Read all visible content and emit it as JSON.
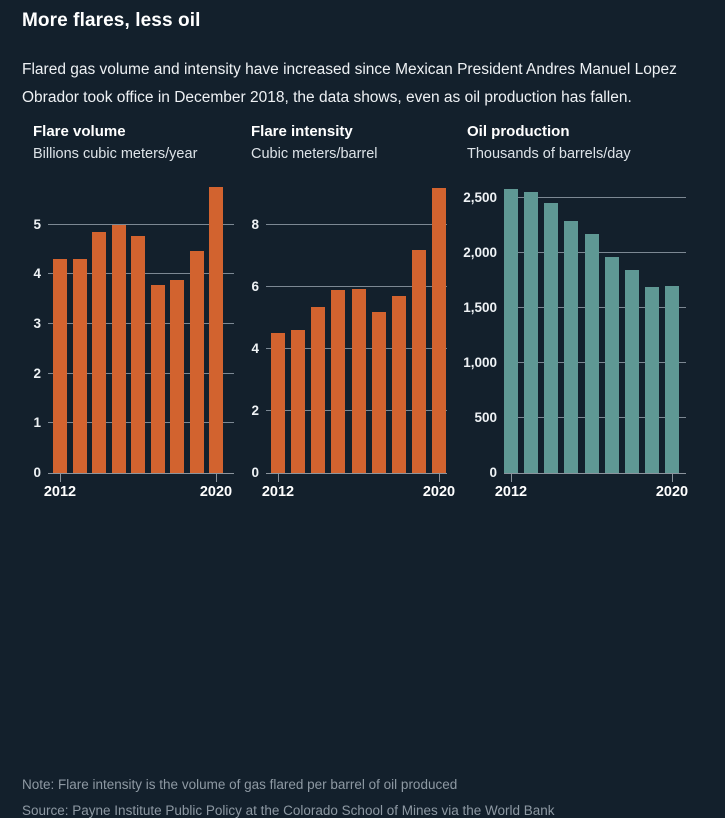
{
  "title": "More flares, less oil",
  "subtitle": "Flared gas volume and intensity have increased since Mexican President Andres Manuel Lopez Obrador took office in December 2018, the data shows, even as oil production has fallen.",
  "note": "Note: Flare intensity is the volume of gas flared per barrel of oil produced",
  "source": "Source: Payne Institute Public Policy at the Colorado School of Mines via the World Bank",
  "colors": {
    "background": "#13202c",
    "flare_orange": "#d2632f",
    "oil_teal": "#5f9894",
    "gridline": "#7c8893",
    "axis": "#8b949d",
    "text": "#ffffff",
    "muted": "#8e99a3"
  },
  "chart_data": [
    {
      "type": "bar",
      "title": "Flare volume",
      "subtitle": "Billions cubic meters/year",
      "categories": [
        "2012",
        "2013",
        "2014",
        "2015",
        "2016",
        "2017",
        "2018",
        "2019",
        "2020"
      ],
      "values": [
        4.3,
        4.3,
        4.85,
        5.0,
        4.78,
        3.78,
        3.88,
        4.48,
        5.75
      ],
      "bar_color": "#d2632f",
      "yticks": [
        0,
        1,
        2,
        3,
        4,
        5
      ],
      "ytick_labels": [
        "0",
        "1",
        "2",
        "3",
        "4",
        "5"
      ],
      "ylim": [
        0,
        5.9
      ],
      "xtick_labels": [
        "2012",
        "2020"
      ],
      "grid": true,
      "legend": "none"
    },
    {
      "type": "bar",
      "title": "Flare intensity",
      "subtitle": "Cubic meters/barrel",
      "categories": [
        "2012",
        "2013",
        "2014",
        "2015",
        "2016",
        "2017",
        "2018",
        "2019",
        "2020"
      ],
      "values": [
        4.5,
        4.6,
        5.35,
        5.9,
        5.95,
        5.2,
        5.7,
        7.2,
        9.2
      ],
      "bar_color": "#d2632f",
      "yticks": [
        0,
        2,
        4,
        6,
        8
      ],
      "ytick_labels": [
        "0",
        "2",
        "4",
        "6",
        "8"
      ],
      "ylim": [
        0,
        9.45
      ],
      "xtick_labels": [
        "2012",
        "2020"
      ],
      "grid": true,
      "legend": "none"
    },
    {
      "type": "bar",
      "title": "Oil production",
      "subtitle": "Thousands of barrels/day",
      "categories": [
        "2012",
        "2013",
        "2014",
        "2015",
        "2016",
        "2017",
        "2018",
        "2019",
        "2020"
      ],
      "values": [
        2580,
        2550,
        2450,
        2290,
        2170,
        1960,
        1845,
        1690,
        1700
      ],
      "bar_color": "#5f9894",
      "yticks": [
        0,
        500,
        1000,
        1500,
        2000,
        2500
      ],
      "ytick_labels": [
        "0",
        "500",
        "1,000",
        "1,500",
        "2,000",
        "2,500"
      ],
      "ylim": [
        0,
        2660
      ],
      "xtick_labels": [
        "2012",
        "2020"
      ],
      "grid": true,
      "legend": "none"
    }
  ]
}
